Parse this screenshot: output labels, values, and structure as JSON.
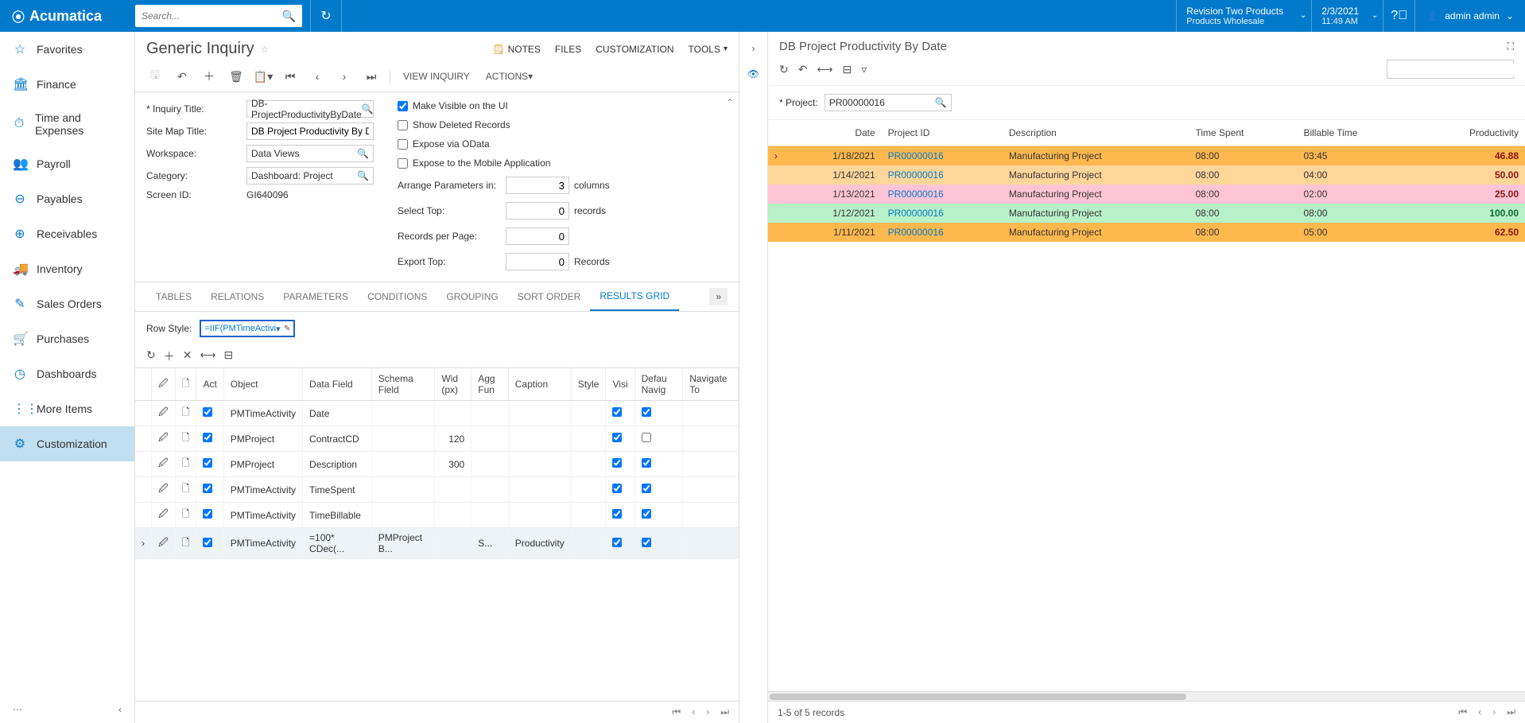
{
  "top": {
    "logo": "Acumatica",
    "search_placeholder": "Search...",
    "tenant_l1": "Revision Two Products",
    "tenant_l2": "Products Wholesale",
    "date_l1": "2/3/2021",
    "date_l2": "11:49 AM",
    "user": "admin admin"
  },
  "sidebar": {
    "items": [
      {
        "icon": "☆",
        "label": "Favorites"
      },
      {
        "icon": "🏛",
        "label": "Finance"
      },
      {
        "icon": "⏱",
        "label": "Time and Expenses"
      },
      {
        "icon": "👥",
        "label": "Payroll"
      },
      {
        "icon": "⊖",
        "label": "Payables"
      },
      {
        "icon": "⊕",
        "label": "Receivables"
      },
      {
        "icon": "🚚",
        "label": "Inventory"
      },
      {
        "icon": "✎",
        "label": "Sales Orders"
      },
      {
        "icon": "🛒",
        "label": "Purchases"
      },
      {
        "icon": "◷",
        "label": "Dashboards"
      },
      {
        "icon": "⋮⋮",
        "label": "More Items"
      },
      {
        "icon": "⚙",
        "label": "Customization"
      }
    ]
  },
  "left": {
    "title": "Generic Inquiry",
    "title_actions": {
      "notes": "NOTES",
      "files": "FILES",
      "customization": "CUSTOMIZATION",
      "tools": "TOOLS"
    },
    "toolbar": {
      "view_inquiry": "VIEW INQUIRY",
      "actions": "ACTIONS"
    },
    "form": {
      "inquiry_title_lbl": "Inquiry Title:",
      "inquiry_title": "DB-ProjectProductivityByDate",
      "sitemap_lbl": "Site Map Title:",
      "sitemap": "DB Project Productivity By Date",
      "workspace_lbl": "Workspace:",
      "workspace": "Data Views",
      "category_lbl": "Category:",
      "category": "Dashboard: Project",
      "screenid_lbl": "Screen ID:",
      "screenid": "GI640096",
      "chk_visible": "Make Visible on the UI",
      "chk_deleted": "Show Deleted Records",
      "chk_odata": "Expose via OData",
      "chk_mobile": "Expose to the Mobile Application",
      "arrange_lbl": "Arrange Parameters in:",
      "arrange_val": "3",
      "arrange_unit": "columns",
      "selecttop_lbl": "Select Top:",
      "selecttop_val": "0",
      "selecttop_unit": "records",
      "rpp_lbl": "Records per Page:",
      "rpp_val": "0",
      "exporttop_lbl": "Export Top:",
      "exporttop_val": "0",
      "exporttop_unit": "Records"
    },
    "tabs": [
      "TABLES",
      "RELATIONS",
      "PARAMETERS",
      "CONDITIONS",
      "GROUPING",
      "SORT ORDER",
      "RESULTS GRID"
    ],
    "rowstyle_lbl": "Row Style:",
    "rowstyle_val": "=IIF(PMTimeActivi",
    "grid": {
      "headers": [
        "",
        "🖉",
        "🗋",
        "Act",
        "Object",
        "Data Field",
        "Schema Field",
        "Wid (px)",
        "Agg Fun",
        "Caption",
        "Style",
        "Visi",
        "Defau Navig",
        "Navigate To"
      ],
      "rows": [
        {
          "object": "PMTimeActivity",
          "field": "Date",
          "schema": "",
          "width": "",
          "agg": "",
          "caption": "",
          "vis": true,
          "nav": true
        },
        {
          "object": "PMProject",
          "field": "ContractCD",
          "schema": "",
          "width": "120",
          "agg": "",
          "caption": "",
          "vis": true,
          "nav": false
        },
        {
          "object": "PMProject",
          "field": "Description",
          "schema": "",
          "width": "300",
          "agg": "",
          "caption": "",
          "vis": true,
          "nav": true
        },
        {
          "object": "PMTimeActivity",
          "field": "TimeSpent",
          "schema": "",
          "width": "",
          "agg": "",
          "caption": "",
          "vis": true,
          "nav": true
        },
        {
          "object": "PMTimeActivity",
          "field": "TimeBillable",
          "schema": "",
          "width": "",
          "agg": "",
          "caption": "",
          "vis": true,
          "nav": true
        },
        {
          "object": "PMTimeActivity",
          "field": "=100* CDec(...",
          "schema": "PMProject B...",
          "width": "",
          "agg": "S...",
          "caption": "Productivity",
          "vis": true,
          "nav": true,
          "sel": true
        }
      ]
    }
  },
  "right": {
    "title": "DB Project Productivity By Date",
    "project_lbl": "Project:",
    "project_val": "PR00000016",
    "grid": {
      "headers": [
        "Date",
        "Project ID",
        "Description",
        "Time Spent",
        "Billable Time",
        "Productivity"
      ],
      "rows": [
        {
          "date": "1/18/2021",
          "pid": "PR00000016",
          "desc": "Manufacturing Project",
          "spent": "08:00",
          "bill": "03:45",
          "prod": "46.88",
          "cls": "row-orange"
        },
        {
          "date": "1/14/2021",
          "pid": "PR00000016",
          "desc": "Manufacturing Project",
          "spent": "08:00",
          "bill": "04:00",
          "prod": "50.00",
          "cls": "row-orange2"
        },
        {
          "date": "1/13/2021",
          "pid": "PR00000016",
          "desc": "Manufacturing Project",
          "spent": "08:00",
          "bill": "02:00",
          "prod": "25.00",
          "cls": "row-pink"
        },
        {
          "date": "1/12/2021",
          "pid": "PR00000016",
          "desc": "Manufacturing Project",
          "spent": "08:00",
          "bill": "08:00",
          "prod": "100.00",
          "cls": "row-green"
        },
        {
          "date": "1/11/2021",
          "pid": "PR00000016",
          "desc": "Manufacturing Project",
          "spent": "08:00",
          "bill": "05:00",
          "prod": "62.50",
          "cls": "row-orange"
        }
      ]
    },
    "footer": "1-5 of 5 records"
  },
  "colors": {
    "primary": "#027acc",
    "row_orange": "#ffb84d",
    "row_orange2": "#ffd699",
    "row_pink": "#ffc4d6",
    "row_green": "#b8f0c7"
  }
}
